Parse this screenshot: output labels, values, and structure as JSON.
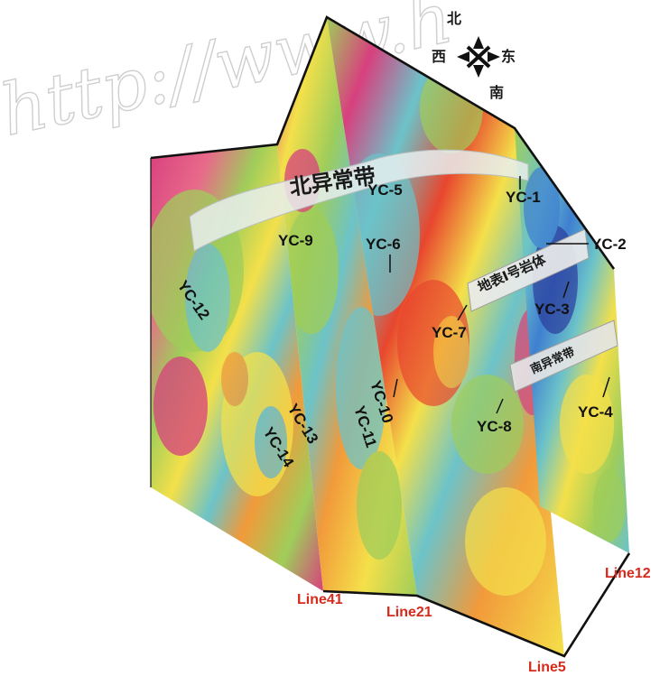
{
  "watermark": "http://www.h",
  "compass": {
    "north": "北",
    "south": "南",
    "east": "东",
    "west": "西"
  },
  "bands": {
    "north": "北异常带",
    "middle": "地表Ⅰ号岩体",
    "south": "南异常带"
  },
  "survey_lines": [
    "Line41",
    "Line21",
    "Line5",
    "Line12"
  ],
  "anomalies": [
    "YC-1",
    "YC-2",
    "YC-3",
    "YC-4",
    "YC-5",
    "YC-6",
    "YC-7",
    "YC-8",
    "YC-9",
    "YC-10",
    "YC-11",
    "YC-12",
    "YC-13",
    "YC-14"
  ],
  "palette": {
    "magenta": "#d8407e",
    "red": "#e8462e",
    "orange": "#f29a3a",
    "yellow": "#f4e04a",
    "green": "#9fcd5a",
    "cyan": "#6cc3c9",
    "blue": "#3f7fd0",
    "navy": "#2b3d9c",
    "line_label": "#d62a1c"
  }
}
